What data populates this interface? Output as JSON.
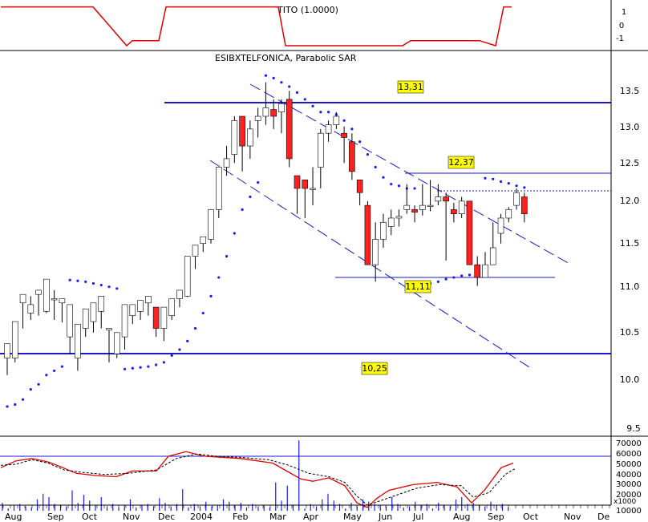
{
  "colors": {
    "panel_line": "#000000",
    "tito_line": "#e00000",
    "candle_up": "#ffffff",
    "candle_down": "#ff2020",
    "candle_outline": "#000000",
    "sar_dot": "#1a1aff",
    "level_line": "#1a1acc",
    "label_bg": "#ffff00",
    "volume_bar": "#1a1aff",
    "osc_fast": "#e00000",
    "osc_slow": "#000000"
  },
  "chart_data": [
    {
      "type": "line",
      "panel": "indicator",
      "title": "TITO (1.0000)",
      "ylim": [
        -1.6,
        1.6
      ],
      "y_ticks": [
        "1",
        "0",
        "-1"
      ],
      "series": [
        {
          "name": "TITO (1.0000)",
          "points": [
            [
              1,
              1.5
            ],
            [
              116,
              1.5
            ],
            [
              158,
              -1.6
            ],
            [
              165,
              -1.2
            ],
            [
              198,
              -1.2
            ],
            [
              207,
              1.5
            ],
            [
              347,
              1.5
            ],
            [
              356,
              -1.6
            ],
            [
              502,
              -1.6
            ],
            [
              512,
              -1.2
            ],
            [
              598,
              -1.2
            ],
            [
              618,
              -1.6
            ],
            [
              628,
              1.5
            ],
            [
              638,
              1.5
            ]
          ]
        }
      ]
    },
    {
      "type": "candlestick",
      "panel": "price",
      "title": "ESIBXTELFONICA, Parabolic SAR",
      "ylim": [
        9.45,
        13.75
      ],
      "y_ticks": [
        "13.5",
        "13.0",
        "12.5",
        "12.0",
        "11.5",
        "11.0",
        "10.5",
        "10.0",
        "9.5"
      ],
      "x_ticks": [
        "Aug",
        "Sep",
        "Oct",
        "Nov",
        "Dec",
        "2004",
        "Feb",
        "Mar",
        "Apr",
        "May",
        "Jun",
        "Jul",
        "Aug",
        "Sep",
        "Oct",
        "Nov",
        "De"
      ],
      "annotations": [
        "13,31",
        "12,37",
        "11,11",
        "10,25"
      ],
      "levels": [
        13.31,
        12.37,
        12.15,
        11.11,
        10.25
      ],
      "candles": [
        [
          10.25,
          10.42,
          10.25,
          10.05
        ],
        [
          10.25,
          10.68,
          10.25,
          10.2
        ],
        [
          10.9,
          11.0,
          10.68,
          10.6
        ],
        [
          10.78,
          10.88,
          10.98,
          10.7
        ],
        [
          11.0,
          11.05,
          10.85,
          10.75
        ],
        [
          10.8,
          11.18,
          10.98,
          10.78
        ],
        [
          10.95,
          10.95,
          11.05,
          10.7
        ],
        [
          10.9,
          10.95,
          10.75,
          10.67
        ],
        [
          10.5,
          10.88,
          10.75,
          10.3
        ],
        [
          10.25,
          10.65,
          10.25,
          10.1
        ],
        [
          10.6,
          10.83,
          10.65,
          10.5
        ],
        [
          10.68,
          10.9,
          10.8,
          10.55
        ],
        [
          10.8,
          10.98,
          10.8,
          10.6
        ],
        [
          10.58,
          10.6,
          10.58,
          10.2
        ],
        [
          10.3,
          10.55,
          10.3,
          10.25
        ],
        [
          10.5,
          10.88,
          10.5,
          10.35
        ],
        [
          10.75,
          10.88,
          10.75,
          10.65
        ],
        [
          10.8,
          10.93,
          10.8,
          10.7
        ],
        [
          10.9,
          10.98,
          10.9,
          10.75
        ],
        [
          10.85,
          10.6,
          10.85,
          10.5
        ],
        [
          10.6,
          10.85,
          10.6,
          10.45
        ],
        [
          10.75,
          10.95,
          10.75,
          10.7
        ],
        [
          10.95,
          11.05,
          10.95,
          10.85
        ],
        [
          10.98,
          11.45,
          11.45,
          10.97
        ],
        [
          11.45,
          11.58,
          11.58,
          11.3
        ],
        [
          11.6,
          11.68,
          11.68,
          11.5
        ],
        [
          11.65,
          12.0,
          12.0,
          11.6
        ],
        [
          12.0,
          12.5,
          12.5,
          11.9
        ],
        [
          12.5,
          12.6,
          12.75,
          12.4
        ],
        [
          12.65,
          13.05,
          13.1,
          12.55
        ],
        [
          13.1,
          12.75,
          13.1,
          12.45
        ],
        [
          12.75,
          12.95,
          13.05,
          12.6
        ],
        [
          13.05,
          13.1,
          13.2,
          12.85
        ],
        [
          13.1,
          13.2,
          13.5,
          13.0
        ],
        [
          13.18,
          13.1,
          13.3,
          12.95
        ],
        [
          13.15,
          13.25,
          13.3,
          12.9
        ],
        [
          13.3,
          12.6,
          13.4,
          12.5
        ],
        [
          12.4,
          12.25,
          12.4,
          11.95
        ],
        [
          12.35,
          12.25,
          12.35,
          11.9
        ],
        [
          12.25,
          12.25,
          12.5,
          12.05
        ],
        [
          12.5,
          12.9,
          12.95,
          12.25
        ],
        [
          12.9,
          13.0,
          13.05,
          12.8
        ],
        [
          13.0,
          13.1,
          13.15,
          12.95
        ],
        [
          12.9,
          12.85,
          12.98,
          12.55
        ],
        [
          12.8,
          12.45,
          12.9,
          12.35
        ],
        [
          12.35,
          12.2,
          12.35,
          12.05
        ],
        [
          12.05,
          11.35,
          12.1,
          11.35
        ],
        [
          11.35,
          11.65,
          11.85,
          11.15
        ],
        [
          11.65,
          11.85,
          11.95,
          11.55
        ],
        [
          11.8,
          11.9,
          12.0,
          11.7
        ],
        [
          11.9,
          11.92,
          12.0,
          11.8
        ],
        [
          12.0,
          12.05,
          12.3,
          11.95
        ],
        [
          12.0,
          11.97,
          12.05,
          11.85
        ],
        [
          12.0,
          12.05,
          12.3,
          11.93
        ],
        [
          12.05,
          12.05,
          12.35,
          11.98
        ],
        [
          12.1,
          12.15,
          12.3,
          12.05
        ],
        [
          12.15,
          12.1,
          12.2,
          11.4
        ],
        [
          12.0,
          11.95,
          12.08,
          11.85
        ],
        [
          11.95,
          12.1,
          12.15,
          11.9
        ],
        [
          12.1,
          11.35,
          12.05,
          11.35
        ],
        [
          11.35,
          11.2,
          11.45,
          11.1
        ],
        [
          11.2,
          11.35,
          11.5,
          11.2
        ],
        [
          11.35,
          11.55,
          11.85,
          11.35
        ],
        [
          11.72,
          11.9,
          11.95,
          11.6
        ],
        [
          11.9,
          12.0,
          12.03,
          11.85
        ],
        [
          12.05,
          12.2,
          12.25,
          12.0
        ],
        [
          12.15,
          11.95,
          12.2,
          11.85
        ]
      ],
      "series": [
        {
          "name": "Parabolic SAR",
          "values": [
            9.73,
            9.75,
            9.8,
            9.9,
            9.95,
            10.05,
            10.1,
            10.15,
            11.17,
            11.16,
            11.15,
            11.13,
            11.11,
            11.09,
            11.07,
            10.12,
            10.13,
            10.14,
            10.15,
            10.17,
            10.2,
            10.28,
            10.35,
            10.45,
            10.6,
            10.78,
            10.98,
            11.2,
            11.45,
            11.72,
            12.0,
            12.15,
            12.32,
            13.58,
            13.55,
            13.5,
            13.45,
            13.38,
            13.3,
            13.22,
            13.15,
            13.15,
            13.12,
            13.05,
            12.95,
            12.8,
            12.65,
            12.5,
            12.38,
            12.3,
            12.28,
            12.25,
            12.25,
            11.12,
            11.13,
            11.15,
            11.18,
            11.2,
            11.22,
            11.23,
            11.25,
            12.37,
            12.36,
            12.33,
            12.31,
            12.28,
            12.26
          ]
        }
      ]
    },
    {
      "type": "bar",
      "panel": "volume",
      "title": "",
      "ylim": [
        10000,
        80000
      ],
      "y_ticks": [
        "70000",
        "60000",
        "50000",
        "40000",
        "30000",
        "20000",
        "10000"
      ],
      "y_multiplier_label": "x1000",
      "values": [
        17000,
        12000,
        15000,
        16000,
        14000,
        13000,
        20000,
        25000,
        22000,
        16000,
        15000,
        14000,
        28000,
        17000,
        24000,
        19000,
        15000,
        22000,
        14000,
        16000,
        13000,
        15000,
        20000,
        13000,
        15000,
        16000,
        14000,
        21000,
        17000,
        14000,
        16000,
        29000,
        13000,
        16000,
        14000,
        18000,
        14000,
        15000,
        20000,
        18000,
        15000,
        17000,
        13000,
        16000,
        14000,
        15000,
        13000,
        35000,
        19000,
        32000,
        15000,
        72000,
        12000,
        16000,
        14000,
        20000,
        25000,
        19000,
        16000,
        12000,
        17000,
        14000,
        20000,
        18000,
        16000,
        15000,
        14000,
        22000,
        16000,
        13000,
        14000,
        18000,
        15000,
        16000,
        12000,
        17000,
        15000,
        14000,
        20000,
        22000,
        16000,
        17000,
        15000,
        14000,
        18000,
        15000,
        16000,
        13000
      ],
      "series": [
        {
          "name": "",
          "points": [
            [
              1,
              48000
            ],
            [
              20,
              54000
            ],
            [
              40,
              56000
            ],
            [
              60,
              53000
            ],
            [
              75,
              49000
            ],
            [
              95,
              43000
            ],
            [
              120,
              41000
            ],
            [
              145,
              40000
            ],
            [
              165,
              45000
            ],
            [
              195,
              45000
            ],
            [
              210,
              58000
            ],
            [
              232,
              62000
            ],
            [
              255,
              58000
            ],
            [
              300,
              56000
            ],
            [
              340,
              52000
            ],
            [
              355,
              46000
            ],
            [
              375,
              38000
            ],
            [
              390,
              36000
            ],
            [
              410,
              39000
            ],
            [
              430,
              32000
            ],
            [
              445,
              17000
            ],
            [
              458,
              13000
            ],
            [
              470,
              21000
            ],
            [
              485,
              28000
            ],
            [
              515,
              33000
            ],
            [
              545,
              35000
            ],
            [
              570,
              31000
            ],
            [
              588,
              17000
            ],
            [
              604,
              28000
            ],
            [
              625,
              48000
            ],
            [
              640,
              52000
            ]
          ]
        },
        {
          "name": "",
          "points": [
            [
              1,
              50000
            ],
            [
              20,
              51000
            ],
            [
              40,
              55000
            ],
            [
              60,
              52000
            ],
            [
              80,
              46000
            ],
            [
              100,
              44000
            ],
            [
              130,
              42000
            ],
            [
              160,
              43000
            ],
            [
              195,
              46000
            ],
            [
              220,
              56000
            ],
            [
              245,
              60000
            ],
            [
              270,
              58000
            ],
            [
              300,
              57000
            ],
            [
              335,
              55000
            ],
            [
              360,
              50000
            ],
            [
              385,
              43000
            ],
            [
              410,
              40000
            ],
            [
              430,
              35000
            ],
            [
              445,
              23000
            ],
            [
              458,
              15000
            ],
            [
              475,
              19000
            ],
            [
              495,
              24000
            ],
            [
              520,
              30000
            ],
            [
              548,
              33000
            ],
            [
              575,
              32000
            ],
            [
              590,
              22000
            ],
            [
              610,
              26000
            ],
            [
              630,
              42000
            ],
            [
              642,
              47000
            ]
          ]
        }
      ]
    }
  ]
}
